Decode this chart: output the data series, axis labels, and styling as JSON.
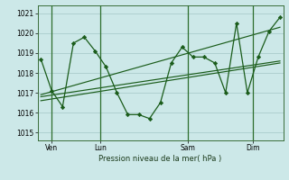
{
  "bg_color": "#cce8e8",
  "grid_color": "#aacccc",
  "line_color": "#1a5c1a",
  "marker_color": "#1a5c1a",
  "yticks": [
    1015,
    1016,
    1017,
    1018,
    1019,
    1020,
    1021
  ],
  "ylim": [
    1014.6,
    1021.4
  ],
  "xlim": [
    -0.3,
    22.3
  ],
  "xtick_labels": [
    "Ven",
    "Lun",
    "Sam",
    "Dim"
  ],
  "xtick_positions": [
    1.0,
    5.5,
    13.5,
    19.5
  ],
  "vline_positions": [
    1.0,
    5.5,
    13.5,
    19.5
  ],
  "xlabel": "Pression niveau de la mer( hPa )",
  "main_x": [
    0,
    1,
    2,
    3,
    4,
    5,
    6,
    7,
    8,
    9,
    10,
    11,
    12,
    13,
    14,
    15,
    16,
    17,
    18,
    19,
    20,
    21,
    22
  ],
  "main_y": [
    1018.7,
    1017.1,
    1016.3,
    1019.5,
    1019.8,
    1019.1,
    1018.3,
    1017.0,
    1015.9,
    1015.9,
    1015.7,
    1016.5,
    1018.5,
    1019.3,
    1018.8,
    1018.8,
    1018.5,
    1017.0,
    1020.5,
    1017.0,
    1018.8,
    1020.1,
    1020.8
  ],
  "trend1_x": [
    0,
    22
  ],
  "trend1_y": [
    1016.6,
    1018.5
  ],
  "trend2_x": [
    0,
    22
  ],
  "trend2_y": [
    1016.9,
    1020.3
  ],
  "trend3_x": [
    0,
    22
  ],
  "trend3_y": [
    1016.8,
    1018.6
  ]
}
